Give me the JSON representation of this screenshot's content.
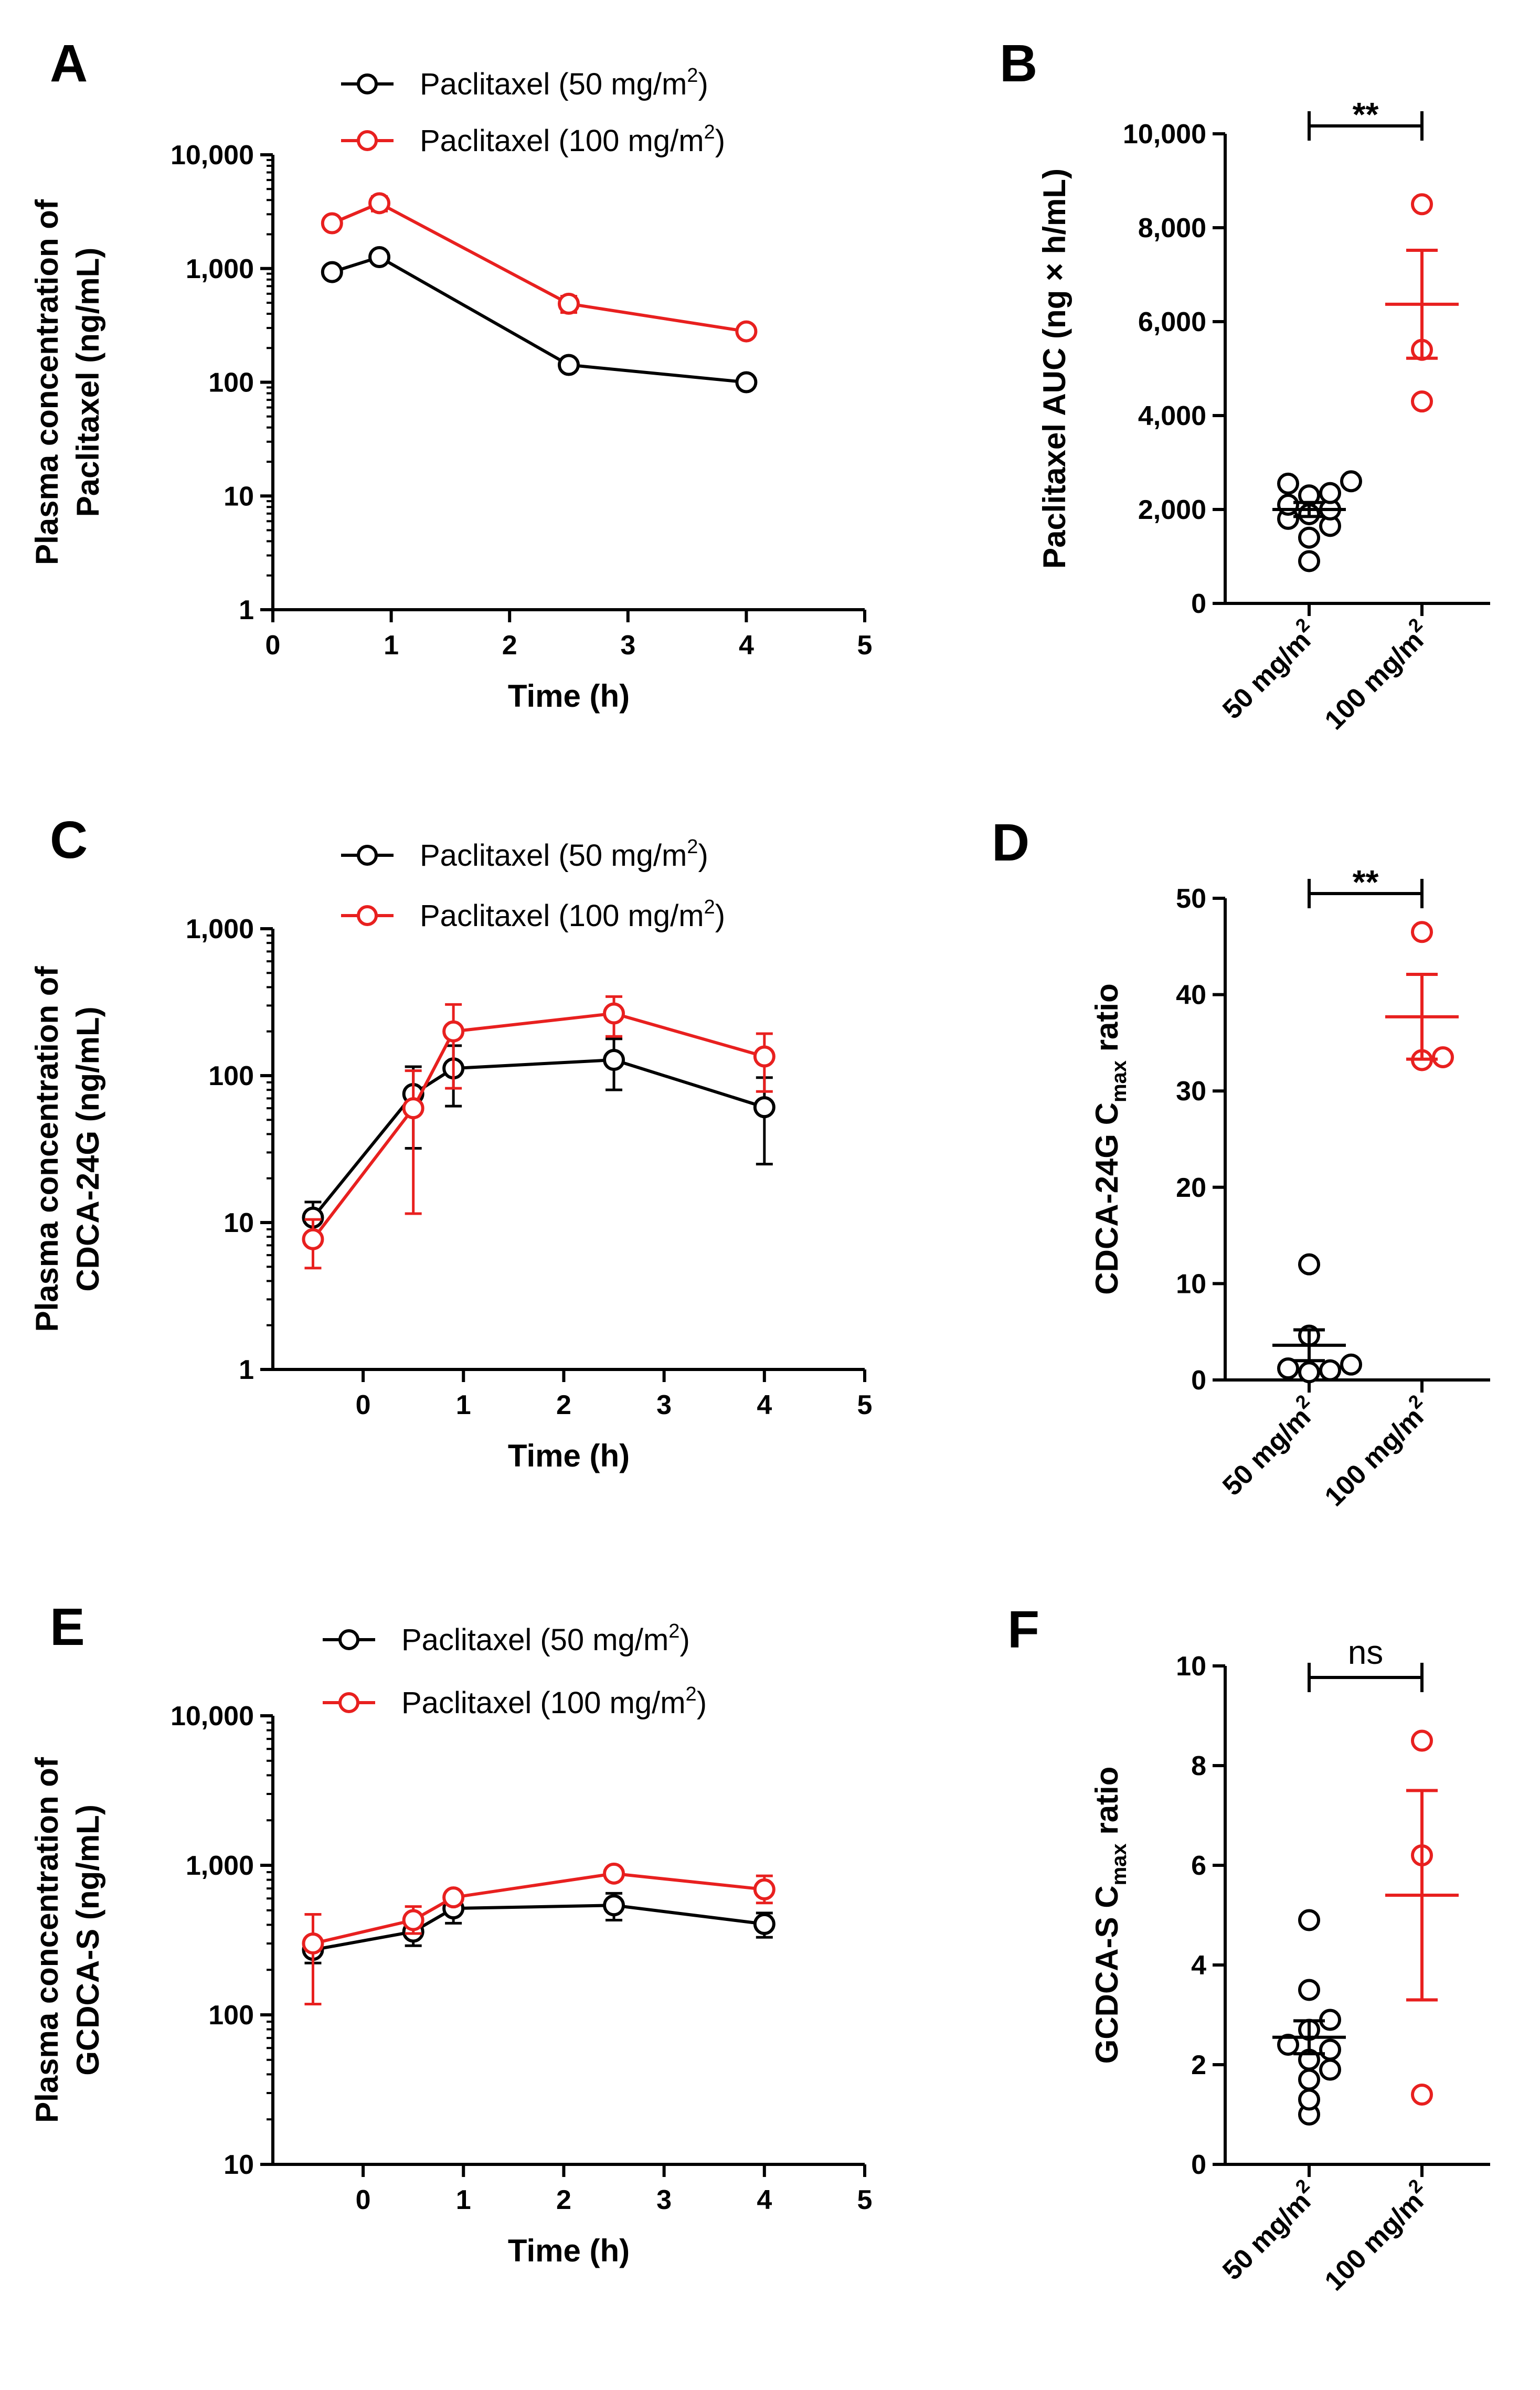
{
  "colors": {
    "black": "#000000",
    "red": "#e8201f"
  },
  "chart_data": [
    {
      "id": "A",
      "type": "line",
      "yscale": "log",
      "xlabel": "Time (h)",
      "ylabel": [
        "Plasma concentration of",
        "Paclitaxel (ng/mL)"
      ],
      "xlim": [
        0,
        5
      ],
      "xticks": [
        0,
        1,
        2,
        3,
        4,
        5
      ],
      "xtick_labels": [
        "0",
        "1",
        "2",
        "3",
        "4",
        "5"
      ],
      "ylim": [
        1,
        10000
      ],
      "yticks": [
        1,
        10,
        100,
        1000,
        10000
      ],
      "ytick_labels": [
        "1",
        "10",
        "100",
        "1,000",
        "10,000"
      ],
      "legend": [
        {
          "text": "Paclitaxel (50 mg/m",
          "sup": "2",
          "close": ")"
        },
        {
          "text": "Paclitaxel (100 mg/m",
          "sup": "2",
          "close": ")"
        }
      ],
      "series": [
        {
          "name": "Paclitaxel (50 mg/m2)",
          "x": [
            0.5,
            0.9,
            2.5,
            4
          ],
          "y": [
            930,
            1260,
            142,
            100
          ],
          "err": [
            0,
            0,
            0,
            0
          ]
        },
        {
          "name": "Paclitaxel (100 mg/m2)",
          "x": [
            0.5,
            0.9,
            2.5,
            4
          ],
          "y": [
            2500,
            3750,
            490,
            280
          ],
          "err": [
            0,
            550,
            80,
            0
          ]
        }
      ]
    },
    {
      "id": "B",
      "type": "scatter",
      "ylabel": [
        "Paclitaxel AUC (ng × h/mL)"
      ],
      "categories": [
        {
          "text": "50 mg/m",
          "sup": "2"
        },
        {
          "text": "100 mg/m",
          "sup": "2"
        }
      ],
      "ylim": [
        0,
        10000
      ],
      "yticks": [
        0,
        2000,
        4000,
        6000,
        8000,
        10000
      ],
      "ytick_labels": [
        "0",
        "2,000",
        "4,000",
        "6,000",
        "8,000",
        "10,000"
      ],
      "significance": "**",
      "groups": [
        {
          "name": "50 mg/m2",
          "points": [
            900,
            1400,
            1650,
            1800,
            1900,
            2000,
            2100,
            2300,
            2350,
            2550,
            2600
          ],
          "mean": 2000,
          "sem": 150
        },
        {
          "name": "100 mg/m2",
          "points": [
            4300,
            5400,
            8500
          ],
          "mean": 6370,
          "sem": 1150
        }
      ]
    },
    {
      "id": "C",
      "type": "line",
      "yscale": "log",
      "xlabel": "Time (h)",
      "ylabel": [
        "Plasma concentration of",
        "CDCA-24G (ng/mL)"
      ],
      "xlim": [
        -0.9,
        5
      ],
      "xticks": [
        0,
        1,
        2,
        3,
        4,
        5
      ],
      "xtick_labels": [
        "0",
        "1",
        "2",
        "3",
        "4",
        "5"
      ],
      "ylim": [
        1,
        1000
      ],
      "yticks": [
        1,
        10,
        100,
        1000
      ],
      "ytick_labels": [
        "1",
        "10",
        "100",
        "1,000"
      ],
      "legend": [
        {
          "text": "Paclitaxel (50 mg/m",
          "sup": "2",
          "close": ")"
        },
        {
          "text": "Paclitaxel (100 mg/m",
          "sup": "2",
          "close": ")"
        }
      ],
      "series": [
        {
          "name": "Paclitaxel (50 mg/m2)",
          "x": [
            -0.5,
            0.5,
            0.9,
            2.5,
            4
          ],
          "y": [
            10.8,
            75,
            112,
            128,
            61
          ],
          "lo": [
            8.3,
            32,
            62,
            80,
            25
          ],
          "hi": [
            13.8,
            115,
            160,
            178,
            97
          ]
        },
        {
          "name": "Paclitaxel (100 mg/m2)",
          "x": [
            -0.5,
            0.5,
            0.9,
            2.5,
            4
          ],
          "y": [
            7.7,
            60,
            200,
            265,
            135
          ],
          "lo": [
            4.9,
            11.5,
            82,
            185,
            78
          ],
          "hi": [
            10.5,
            108,
            305,
            345,
            193
          ]
        }
      ]
    },
    {
      "id": "D",
      "type": "scatter",
      "ylabel": [
        "CDCA-24G C",
        "max",
        " ratio"
      ],
      "categories": [
        {
          "text": "50 mg/m",
          "sup": "2"
        },
        {
          "text": "100 mg/m",
          "sup": "2"
        }
      ],
      "ylim": [
        0,
        50
      ],
      "yticks": [
        0,
        10,
        20,
        30,
        40,
        50
      ],
      "ytick_labels": [
        "0",
        "10",
        "20",
        "30",
        "40",
        "50"
      ],
      "significance": "**",
      "groups": [
        {
          "name": "50 mg/m2",
          "points": [
            0.8,
            1.0,
            1.2,
            1.6,
            4.6,
            12
          ],
          "mean": 3.6,
          "sem": 1.6
        },
        {
          "name": "100 mg/m2",
          "points": [
            33.2,
            33.5,
            46.5
          ],
          "mean": 37.7,
          "sem": 4.4
        }
      ]
    },
    {
      "id": "E",
      "type": "line",
      "yscale": "log",
      "xlabel": "Time (h)",
      "ylabel": [
        "Plasma concentration of",
        "GCDCA-S (ng/mL)"
      ],
      "xlim": [
        -0.9,
        5
      ],
      "xticks": [
        0,
        1,
        2,
        3,
        4,
        5
      ],
      "xtick_labels": [
        "0",
        "1",
        "2",
        "3",
        "4",
        "5"
      ],
      "ylim": [
        10,
        10000
      ],
      "yticks": [
        10,
        100,
        1000,
        10000
      ],
      "ytick_labels": [
        "10",
        "100",
        "1,000",
        "10,000"
      ],
      "legend": [
        {
          "text": "Paclitaxel (50 mg/m",
          "sup": "2",
          "close": ")"
        },
        {
          "text": "Paclitaxel (100 mg/m",
          "sup": "2",
          "close": ")"
        }
      ],
      "series": [
        {
          "name": "Paclitaxel (50 mg/m2)",
          "x": [
            -0.5,
            0.5,
            0.9,
            2.5,
            4
          ],
          "y": [
            272,
            360,
            515,
            540,
            405
          ],
          "lo": [
            222,
            290,
            410,
            430,
            330
          ],
          "hi": [
            325,
            440,
            620,
            650,
            480
          ]
        },
        {
          "name": "Paclitaxel (100 mg/m2)",
          "x": [
            -0.5,
            0.5,
            0.9,
            2.5,
            4
          ],
          "y": [
            300,
            430,
            610,
            880,
            690
          ],
          "lo": [
            118,
            350,
            560,
            800,
            560
          ],
          "hi": [
            470,
            530,
            665,
            960,
            850
          ]
        }
      ]
    },
    {
      "id": "F",
      "type": "scatter",
      "ylabel": [
        "GCDCA-S C",
        "max",
        " ratio"
      ],
      "categories": [
        {
          "text": "50 mg/m",
          "sup": "2"
        },
        {
          "text": "100 mg/m",
          "sup": "2"
        }
      ],
      "ylim": [
        0,
        10
      ],
      "yticks": [
        0,
        2,
        4,
        6,
        8,
        10
      ],
      "ytick_labels": [
        "0",
        "2",
        "4",
        "6",
        "8",
        "10"
      ],
      "significance": "ns",
      "groups": [
        {
          "name": "50 mg/m2",
          "points": [
            1.0,
            1.3,
            1.7,
            1.9,
            2.1,
            2.3,
            2.4,
            2.7,
            2.9,
            3.5,
            4.9
          ],
          "mean": 2.55,
          "sem": 0.33
        },
        {
          "name": "100 mg/m2",
          "points": [
            1.4,
            6.2,
            8.5
          ],
          "mean": 5.4,
          "sem": 2.1
        }
      ]
    }
  ]
}
